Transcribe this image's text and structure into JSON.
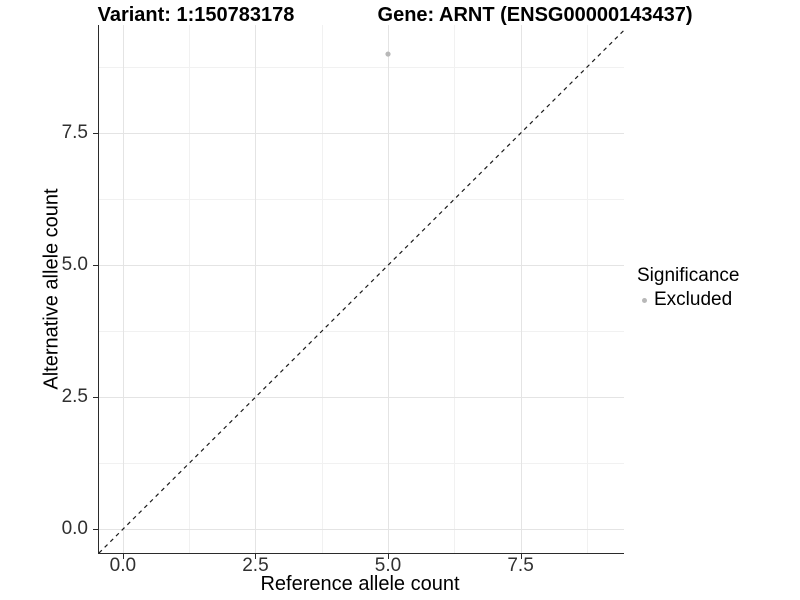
{
  "chart_data": {
    "type": "scatter",
    "title_left": "Variant: 1:150783178",
    "title_right": "Gene: ARNT (ENSG00000143437)",
    "xlabel": "Reference allele count",
    "ylabel": "Alternative allele count",
    "xlim": [
      -0.45,
      9.45
    ],
    "ylim": [
      -0.45,
      9.55
    ],
    "x_ticks": {
      "values": [
        0,
        2.5,
        5,
        7.5
      ],
      "labels": [
        "0.0",
        "2.5",
        "5.0",
        "7.5"
      ]
    },
    "y_ticks": {
      "values": [
        0,
        2.5,
        5,
        7.5
      ],
      "labels": [
        "0.0",
        "2.5",
        "5.0",
        "7.5"
      ]
    },
    "grid": {
      "major": [
        0,
        2.5,
        5,
        7.5
      ],
      "minor": [
        1.25,
        3.75,
        6.25,
        8.75
      ],
      "major_color": "#e4e4e4",
      "minor_color": "#f1f1f1"
    },
    "reference_line": {
      "description": "y = x identity line",
      "style": "dashed",
      "color": "#1a1a1a",
      "from": {
        "x": -0.45,
        "y": -0.45
      },
      "to": {
        "x": 9.45,
        "y": 9.45
      }
    },
    "series": [
      {
        "name": "Excluded",
        "color": "#b8b8b8",
        "point_radius": 2.6,
        "points": [
          {
            "x": 5,
            "y": 9
          }
        ]
      }
    ],
    "legend": {
      "title": "Significance",
      "position": "right",
      "entries": [
        {
          "label": "Excluded",
          "color": "#b8b8b8"
        }
      ]
    }
  }
}
